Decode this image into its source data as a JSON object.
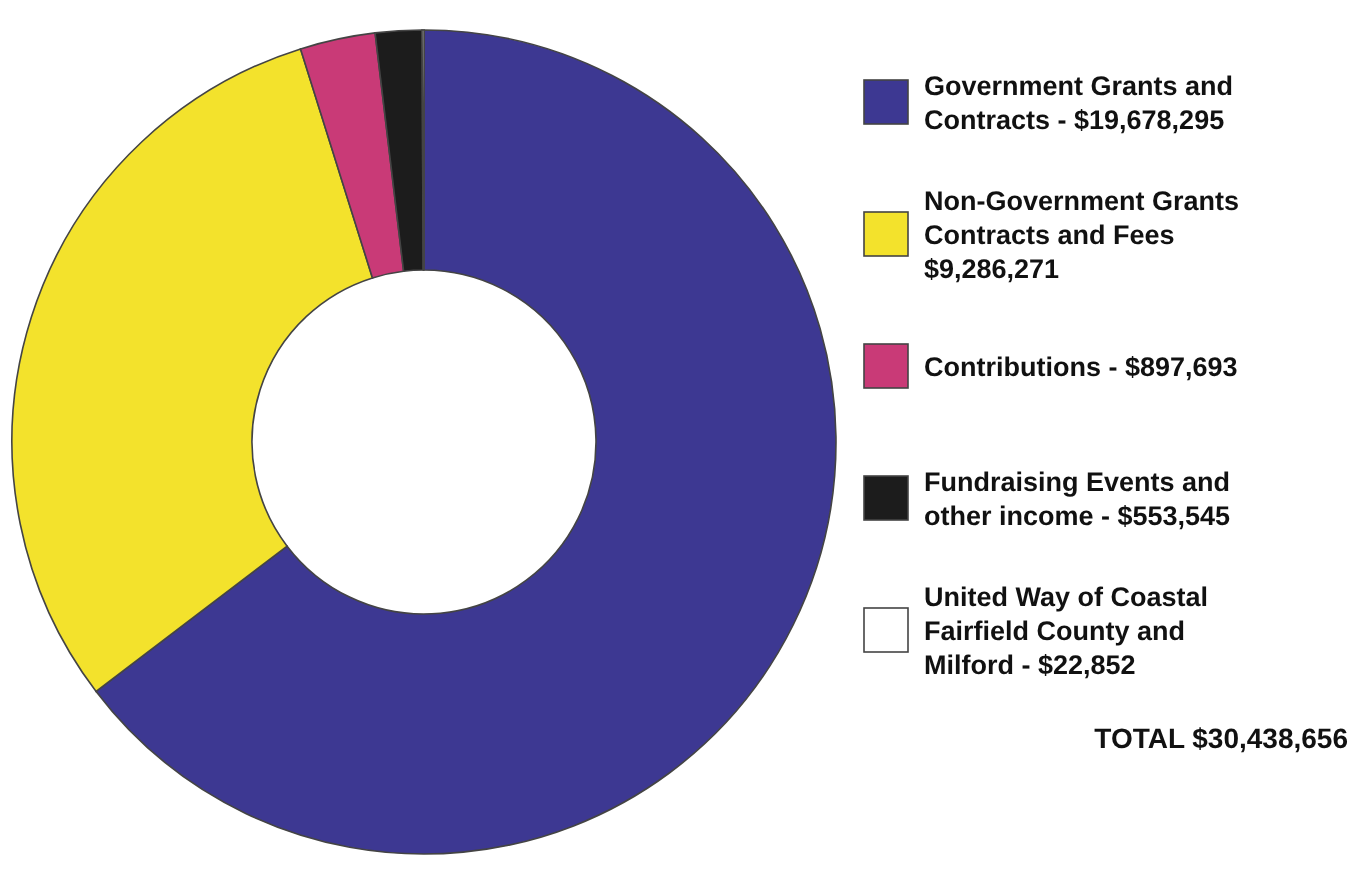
{
  "chart_data": {
    "type": "donut",
    "categories": [
      "Government Grants and Contracts - $19,678,295",
      "Non-Government Grants Contracts and Fees $9,286,271",
      "Contributions - $897,693",
      "Fundraising Events and other income - $553,545",
      "United Way of Coastal Fairfield County and Milford - $22,852"
    ],
    "values": [
      19678295,
      9286271,
      897693,
      553545,
      22852
    ],
    "colors": [
      "#3d3892",
      "#f3e22c",
      "#c93a77",
      "#1c1c1c",
      "#ffffff"
    ],
    "legend": "right",
    "annotations": [
      "TOTAL $30,438,656"
    ]
  }
}
